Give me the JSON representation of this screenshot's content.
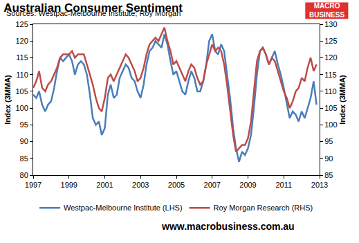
{
  "chart_data": {
    "type": "line",
    "title": "Australian Consumer Sentiment",
    "subtitle": "Sources: Westpac-Melbourne Institute; Roy Morgan",
    "logo": [
      "MACRO",
      "BUSINESS"
    ],
    "footer": "www.macrobusiness.com.au",
    "ytitle": "Index (3MMA)",
    "y2title": "Index (3MMA)",
    "x": [
      1997,
      1997.17,
      1997.33,
      1997.5,
      1997.67,
      1997.83,
      1998,
      1998.17,
      1998.33,
      1998.5,
      1998.67,
      1998.83,
      1999,
      1999.17,
      1999.33,
      1999.5,
      1999.67,
      1999.83,
      2000,
      2000.17,
      2000.33,
      2000.5,
      2000.67,
      2000.83,
      2001,
      2001.17,
      2001.33,
      2001.5,
      2001.67,
      2001.83,
      2002,
      2002.17,
      2002.33,
      2002.5,
      2002.67,
      2002.83,
      2003,
      2003.17,
      2003.33,
      2003.5,
      2003.67,
      2003.83,
      2004,
      2004.17,
      2004.33,
      2004.5,
      2004.67,
      2004.83,
      2005,
      2005.17,
      2005.33,
      2005.5,
      2005.67,
      2005.83,
      2006,
      2006.17,
      2006.33,
      2006.5,
      2006.67,
      2006.83,
      2007,
      2007.17,
      2007.33,
      2007.5,
      2007.67,
      2007.83,
      2008,
      2008.17,
      2008.33,
      2008.5,
      2008.67,
      2008.83,
      2009,
      2009.17,
      2009.33,
      2009.5,
      2009.67,
      2009.83,
      2010,
      2010.17,
      2010.33,
      2010.5,
      2010.67,
      2010.83,
      2011,
      2011.17,
      2011.33,
      2011.5,
      2011.67,
      2011.83,
      2012,
      2012.17,
      2012.33,
      2012.5,
      2012.67,
      2012.83
    ],
    "series": [
      {
        "name": "Westpac-Melbourne Institute (LHS)",
        "color": "#4a7ebb",
        "axis": "y",
        "values": [
          104,
          103,
          105,
          101,
          99,
          101,
          102,
          106,
          111,
          115,
          114,
          115,
          116,
          114,
          110,
          113,
          114,
          113,
          110,
          104,
          97,
          95,
          96,
          92,
          94,
          104,
          107,
          103,
          104,
          109,
          111,
          113,
          112,
          109,
          108,
          105,
          103,
          107,
          113,
          117,
          118,
          120,
          119,
          118,
          122,
          119,
          114,
          110,
          111,
          108,
          105,
          104,
          108,
          111,
          109,
          105,
          105,
          108,
          113,
          120,
          122,
          117,
          116,
          119,
          117,
          110,
          103,
          94,
          88,
          84,
          87,
          86,
          88,
          92,
          100,
          110,
          117,
          118,
          116,
          113,
          115,
          117,
          113,
          110,
          106,
          101,
          97,
          99,
          98,
          96,
          99,
          97,
          100,
          103,
          108,
          101
        ]
      },
      {
        "name": "Roy Morgan Research (RHS)",
        "color": "#be4b48",
        "axis": "y2",
        "values": [
          111,
          113,
          116,
          111,
          110,
          112,
          113,
          115,
          117,
          120,
          121,
          121,
          121,
          122,
          120,
          121,
          121,
          121,
          118,
          115,
          112,
          108,
          105,
          104,
          108,
          114,
          115,
          113,
          115,
          117,
          119,
          121,
          120,
          118,
          116,
          113,
          114,
          117,
          121,
          124,
          125,
          126,
          125,
          127,
          129,
          125,
          122,
          118,
          119,
          117,
          115,
          113,
          116,
          118,
          117,
          114,
          112,
          113,
          118,
          121,
          124,
          122,
          123,
          122,
          118,
          112,
          104,
          97,
          92,
          93,
          94,
          94,
          96,
          101,
          110,
          119,
          122,
          123,
          121,
          118,
          120,
          119,
          116,
          113,
          110,
          108,
          105,
          107,
          110,
          111,
          114,
          113,
          117,
          120,
          116,
          118
        ]
      }
    ],
    "xlim": [
      1997,
      2013
    ],
    "xticks": [
      1997,
      1999,
      2001,
      2003,
      2005,
      2007,
      2009,
      2011,
      2013
    ],
    "ylim": [
      80,
      125
    ],
    "yticks": [
      80,
      85,
      90,
      95,
      100,
      105,
      110,
      115,
      120,
      125
    ],
    "y2lim": [
      85,
      130
    ],
    "y2ticks": [
      85,
      90,
      95,
      100,
      105,
      110,
      115,
      120,
      125,
      130
    ],
    "grid": false,
    "legend": "bottom"
  }
}
